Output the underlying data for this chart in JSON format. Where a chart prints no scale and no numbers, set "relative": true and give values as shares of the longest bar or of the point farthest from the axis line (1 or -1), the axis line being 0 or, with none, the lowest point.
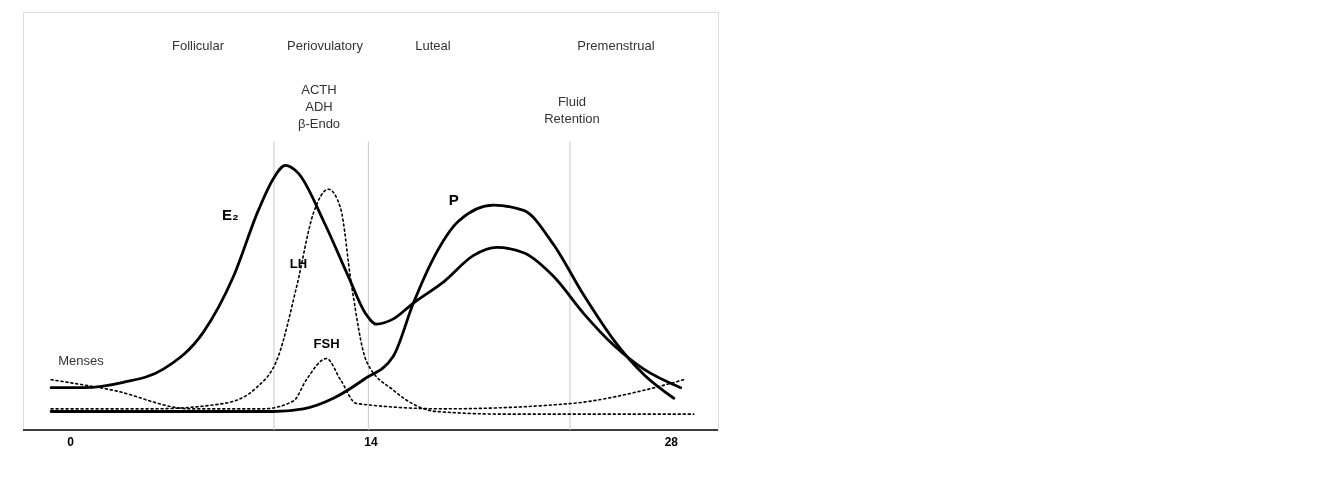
{
  "chart_data": {
    "type": "line",
    "relative": true,
    "xlim": [
      -2.2,
      30.2
    ],
    "xticks": [
      0,
      14,
      28
    ],
    "series": [
      {
        "name": "E₂",
        "color": "#000000",
        "line_style": "solid",
        "x": [
          -0.89,
          0.61,
          2.47,
          4.34,
          6.21,
          7.61,
          8.77,
          9.47,
          10.03,
          10.64,
          11.81,
          12.97,
          13.77,
          14.28,
          15.07,
          16.0,
          17.41,
          18.81,
          19.88,
          21.14,
          22.54,
          23.94,
          25.34,
          26.74,
          28.46
        ],
        "values": [
          0.16,
          0.16,
          0.18,
          0.23,
          0.37,
          0.58,
          0.83,
          0.95,
          1.0,
          0.97,
          0.79,
          0.58,
          0.44,
          0.4,
          0.42,
          0.48,
          0.56,
          0.66,
          0.69,
          0.67,
          0.58,
          0.44,
          0.32,
          0.23,
          0.16
        ]
      },
      {
        "name": "P",
        "color": "#000000",
        "line_style": "solid",
        "x": [
          -0.89,
          3.87,
          9.47,
          10.87,
          12.27,
          13.67,
          15.07,
          16.0,
          16.94,
          18.11,
          19.74,
          21.14,
          22.54,
          23.94,
          25.34,
          26.74,
          28.14
        ],
        "values": [
          0.07,
          0.07,
          0.07,
          0.08,
          0.12,
          0.19,
          0.28,
          0.48,
          0.65,
          0.79,
          0.85,
          0.83,
          0.7,
          0.51,
          0.34,
          0.21,
          0.12
        ]
      },
      {
        "name": "LH",
        "color": "#000000",
        "line_style": "dotted",
        "x": [
          -0.89,
          3.87,
          7.14,
          8.68,
          9.71,
          10.55,
          11.34,
          12.04,
          12.6,
          13.11,
          13.81,
          15.07,
          17.08,
          20.21,
          29.07
        ],
        "values": [
          0.08,
          0.08,
          0.1,
          0.16,
          0.28,
          0.54,
          0.82,
          0.91,
          0.84,
          0.55,
          0.26,
          0.15,
          0.07,
          0.06,
          0.06
        ]
      },
      {
        "name": "FSH",
        "color": "#000000",
        "line_style": "dotted",
        "x": [
          -0.89,
          2.01,
          5.6,
          9.0,
          10.41,
          11.01,
          11.95,
          12.6,
          13.35,
          17.41,
          23.33,
          26.74,
          28.6
        ],
        "values": [
          0.19,
          0.15,
          0.08,
          0.08,
          0.11,
          0.19,
          0.27,
          0.19,
          0.1,
          0.08,
          0.1,
          0.15,
          0.19
        ]
      }
    ],
    "ref_lines": [
      {
        "axis": "x",
        "value": 9.5,
        "color": "#c8c8c8"
      },
      {
        "axis": "x",
        "value": 13.9,
        "color": "#c8c8c8"
      },
      {
        "axis": "x",
        "value": 23.3,
        "color": "#c8c8c8"
      }
    ],
    "annotations": [
      "Follicular",
      "Periovulatory",
      "Luteal",
      "Premenstrual",
      "ACTH\nADH\nβ-Endo",
      "Fluid\nRetention",
      "Menses"
    ],
    "grid": false
  }
}
